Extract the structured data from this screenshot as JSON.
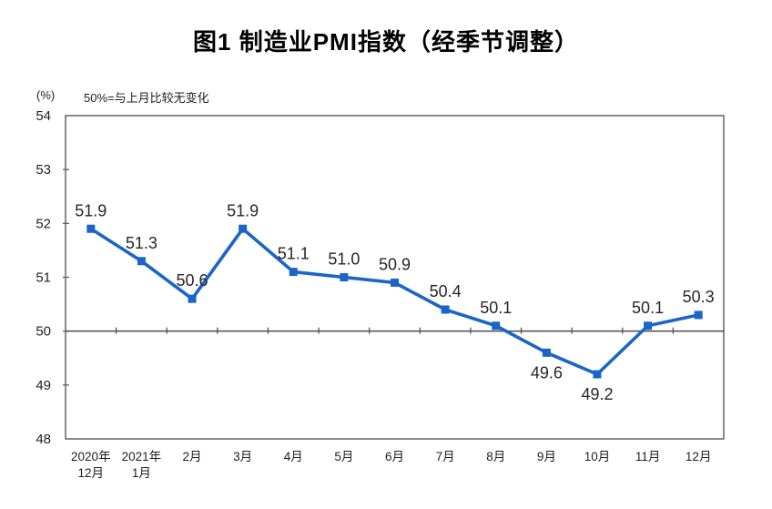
{
  "chart_data": {
    "type": "line",
    "title": "图1 制造业PMI指数（经季节调整）",
    "y_unit_label": "(%)",
    "reference_note": "50%=与上月比较无变化",
    "categories": [
      [
        "2020年",
        "12月"
      ],
      [
        "2021年",
        "1月"
      ],
      [
        "2月"
      ],
      [
        "3月"
      ],
      [
        "4月"
      ],
      [
        "5月"
      ],
      [
        "6月"
      ],
      [
        "7月"
      ],
      [
        "8月"
      ],
      [
        "9月"
      ],
      [
        "10月"
      ],
      [
        "11月"
      ],
      [
        "12月"
      ]
    ],
    "values": [
      51.9,
      51.3,
      50.6,
      51.9,
      51.1,
      51.0,
      50.9,
      50.4,
      50.1,
      49.6,
      49.2,
      50.1,
      50.3
    ],
    "label_placement": [
      "above",
      "above",
      "above",
      "above",
      "above",
      "above",
      "above",
      "above",
      "above",
      "below",
      "below",
      "above",
      "above"
    ],
    "y_ticks": [
      48,
      49,
      50,
      51,
      52,
      53,
      54
    ],
    "ylim": [
      48,
      54
    ],
    "axis_cross_value": 50,
    "grid": "none",
    "legend": "none",
    "colors": {
      "line": "#1C65C8",
      "marker": "#1C65C8",
      "axis": "#595959",
      "cross_line": "#4D4D4D",
      "data_label": "#262626",
      "tick_label": "#1F1F1F",
      "title": "#000000"
    }
  }
}
